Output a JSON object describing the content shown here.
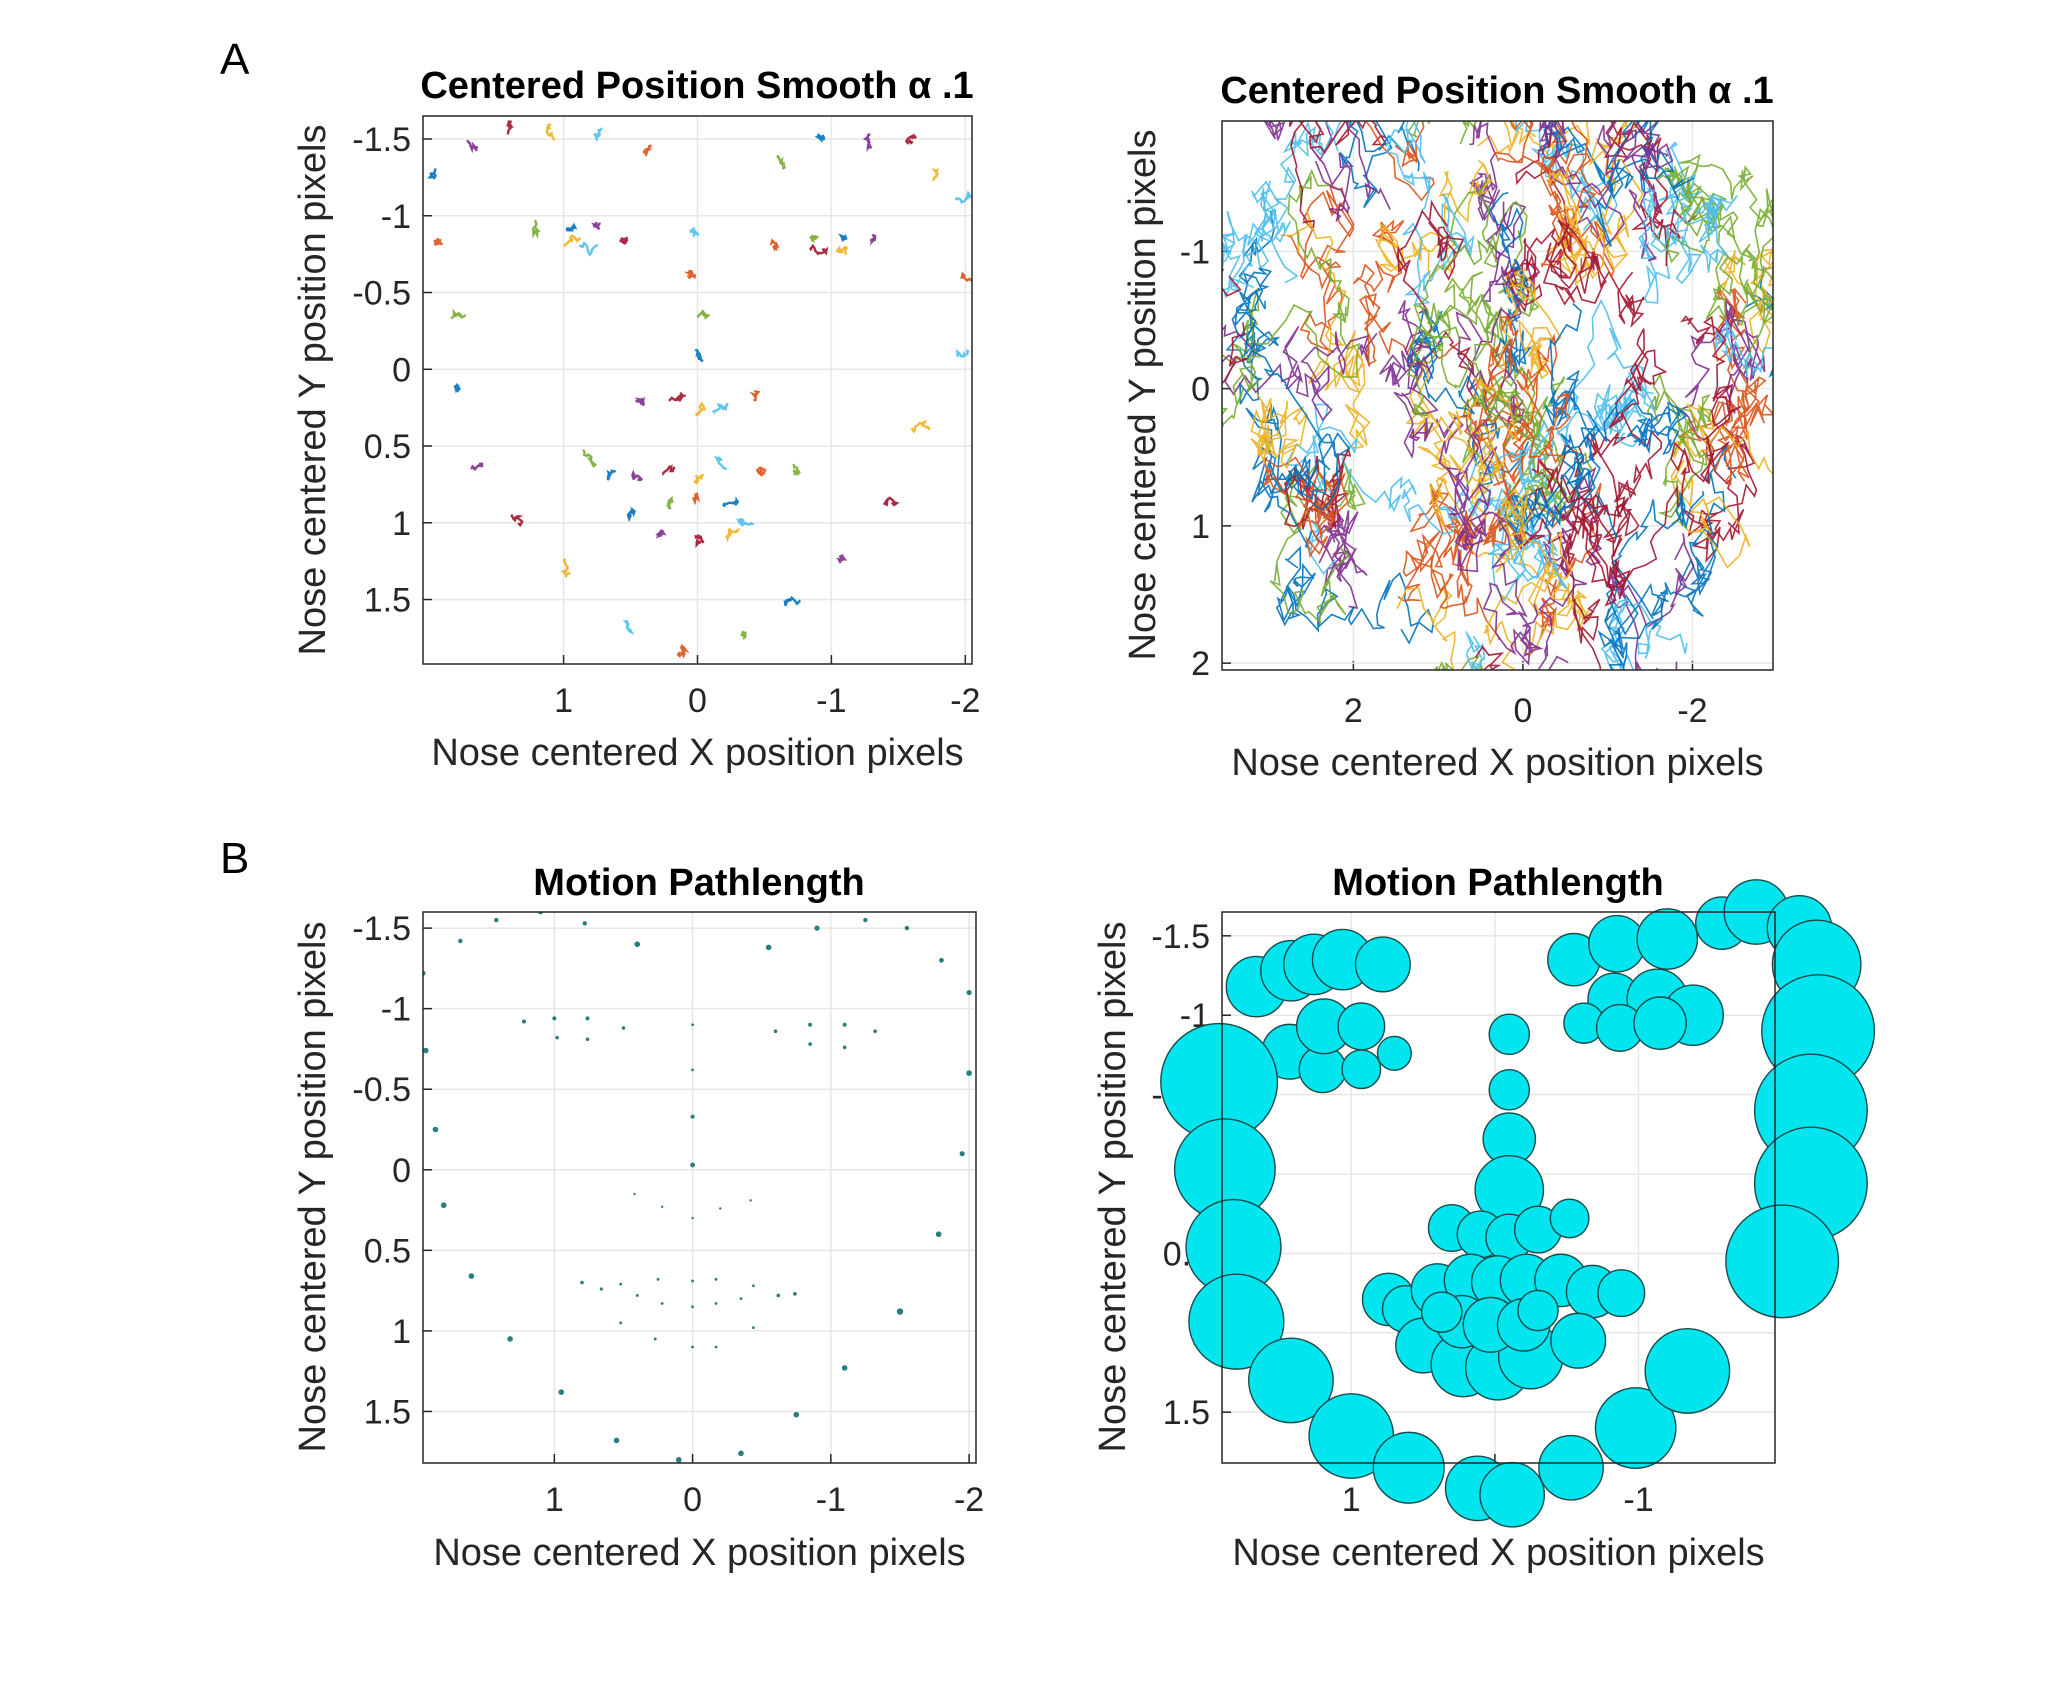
{
  "panel_labels": [
    "A",
    "B"
  ],
  "colors": {
    "series": [
      "#0072BD",
      "#D95319",
      "#EDB120",
      "#7E2F8E",
      "#77AC30",
      "#4DBEEE",
      "#A2142F"
    ],
    "bubble_fill": "#00E5EE",
    "bubble_stroke": "#1a4a4a",
    "small_dot": "#2a7d7d",
    "grid": "#e6e6e6",
    "axis": "#262626"
  },
  "chart_data": [
    {
      "id": "A-left",
      "type": "line",
      "title": "Centered Position Smooth α .1",
      "xlabel": "Nose centered X position pixels",
      "ylabel": "Nose centered Y position pixels",
      "xlim": [
        2.05,
        -2.05
      ],
      "ylim": [
        -1.65,
        1.92
      ],
      "xticks": [
        1,
        0,
        -1,
        -2
      ],
      "xtick_labels": [
        "1",
        "0",
        "-1",
        "-2"
      ],
      "yticks": [
        -1.5,
        -1,
        -0.5,
        0,
        0.5,
        1,
        1.5
      ],
      "ytick_labels": [
        "-1.5",
        "-1",
        "-0.5",
        "0",
        "0.5",
        "1",
        "1.5"
      ],
      "trace_scale": 0.045,
      "landmarks": [
        [
          1.95,
          -1.3
        ],
        [
          1.65,
          -1.42
        ],
        [
          1.42,
          -1.55
        ],
        [
          1.1,
          -1.6
        ],
        [
          0.75,
          -1.55
        ],
        [
          0.4,
          -1.42
        ],
        [
          -0.6,
          -1.38
        ],
        [
          -0.95,
          -1.5
        ],
        [
          -1.3,
          -1.55
        ],
        [
          -1.6,
          -1.5
        ],
        [
          -1.8,
          -1.28
        ],
        [
          -2.0,
          -1.1
        ],
        [
          1.92,
          -0.8
        ],
        [
          1.85,
          -0.32
        ],
        [
          1.8,
          0.15
        ],
        [
          1.62,
          0.6
        ],
        [
          1.35,
          1.02
        ],
        [
          0.95,
          1.35
        ],
        [
          0.55,
          1.65
        ],
        [
          0.1,
          1.78
        ],
        [
          -0.35,
          1.75
        ],
        [
          -0.75,
          1.5
        ],
        [
          -1.1,
          1.22
        ],
        [
          -1.48,
          0.85
        ],
        [
          -1.75,
          0.4
        ],
        [
          -1.92,
          -0.08
        ],
        [
          -1.98,
          -0.6
        ],
        [
          1.22,
          -0.9
        ],
        [
          1.0,
          -0.9
        ],
        [
          0.75,
          -0.92
        ],
        [
          0.5,
          -0.85
        ],
        [
          0.98,
          -0.82
        ],
        [
          0.75,
          -0.8
        ],
        [
          -0.58,
          -0.84
        ],
        [
          -0.85,
          -0.88
        ],
        [
          -1.1,
          -0.86
        ],
        [
          -1.32,
          -0.84
        ],
        [
          -0.85,
          -0.78
        ],
        [
          -1.1,
          -0.76
        ],
        [
          0.0,
          -0.88
        ],
        [
          0.0,
          -0.6
        ],
        [
          0.0,
          -0.32
        ],
        [
          0.0,
          -0.05
        ],
        [
          0.4,
          0.18
        ],
        [
          0.2,
          0.22
        ],
        [
          0.0,
          0.3
        ],
        [
          -0.2,
          0.23
        ],
        [
          -0.4,
          0.2
        ],
        [
          0.8,
          0.62
        ],
        [
          0.6,
          0.68
        ],
        [
          0.4,
          0.72
        ],
        [
          0.2,
          0.65
        ],
        [
          0.0,
          0.7
        ],
        [
          -0.2,
          0.65
        ],
        [
          -0.45,
          0.7
        ],
        [
          -0.72,
          0.67
        ],
        [
          0.5,
          0.95
        ],
        [
          0.25,
          1.05
        ],
        [
          0.0,
          1.12
        ],
        [
          -0.2,
          1.1
        ],
        [
          -0.4,
          0.98
        ],
        [
          0.0,
          0.85
        ],
        [
          0.2,
          0.88
        ],
        [
          -0.2,
          0.88
        ]
      ]
    },
    {
      "id": "A-right",
      "type": "line",
      "title": "Centered Position Smooth α .1",
      "xlabel": "Nose centered X position pixels",
      "ylabel": "Nose centered Y position pixels",
      "xlim": [
        3.55,
        -2.95
      ],
      "ylim": [
        -1.95,
        2.05
      ],
      "xticks": [
        2,
        0,
        -2
      ],
      "xtick_labels": [
        "2",
        "0",
        "-2"
      ],
      "yticks": [
        -1,
        0,
        1,
        2
      ],
      "ytick_labels": [
        "-1",
        "0",
        "1",
        "2"
      ],
      "trace_scale": 0.32,
      "landmarks": [
        [
          2.9,
          -1.2
        ],
        [
          2.3,
          -1.6
        ],
        [
          1.5,
          -1.85
        ],
        [
          0.6,
          -1.9
        ],
        [
          -0.4,
          -1.85
        ],
        [
          -1.2,
          -1.6
        ],
        [
          -1.9,
          -1.25
        ],
        [
          -2.5,
          -0.75
        ],
        [
          -2.7,
          -0.1
        ],
        [
          -2.4,
          0.5
        ],
        [
          -1.9,
          1.1
        ],
        [
          -1.2,
          1.6
        ],
        [
          -0.4,
          1.85
        ],
        [
          0.5,
          1.9
        ],
        [
          1.4,
          1.65
        ],
        [
          2.2,
          1.2
        ],
        [
          2.8,
          0.55
        ],
        [
          3.1,
          -0.1
        ],
        [
          3.2,
          -0.6
        ],
        [
          1.6,
          -1.15
        ],
        [
          0.8,
          -1.25
        ],
        [
          -0.8,
          -1.2
        ],
        [
          -1.5,
          -1.05
        ],
        [
          0.0,
          -0.6
        ],
        [
          0.0,
          0.2
        ],
        [
          0.0,
          0.6
        ],
        [
          0.3,
          0.8
        ],
        [
          -0.3,
          0.8
        ],
        [
          0.0,
          1.05
        ],
        [
          0.5,
          0.5
        ],
        [
          -0.5,
          0.6
        ],
        [
          1.2,
          0.2
        ],
        [
          -1.2,
          0.3
        ]
      ]
    },
    {
      "id": "B-left",
      "type": "scatter",
      "title": "Motion Pathlength",
      "xlabel": "Nose centered X position pixels",
      "ylabel": "Nose centered Y position pixels",
      "xlim": [
        1.95,
        -2.05
      ],
      "ylim": [
        -1.6,
        1.82
      ],
      "xticks": [
        1,
        0,
        -1,
        -2
      ],
      "xtick_labels": [
        "1",
        "0",
        "-1",
        "-2"
      ],
      "yticks": [
        -1.5,
        -1,
        -0.5,
        0,
        0.5,
        1,
        1.5
      ],
      "ytick_labels": [
        "-1.5",
        "-1",
        -0.5,
        "0",
        "0.5",
        "1",
        "1.5"
      ],
      "points": [
        [
          1.95,
          -1.22,
          2.6
        ],
        [
          1.68,
          -1.42,
          2.2
        ],
        [
          1.42,
          -1.55,
          2.2
        ],
        [
          1.1,
          -1.6,
          2.4
        ],
        [
          0.78,
          -1.53,
          2.2
        ],
        [
          0.4,
          -1.4,
          2.8
        ],
        [
          -0.55,
          -1.38,
          2.8
        ],
        [
          -0.9,
          -1.5,
          2.6
        ],
        [
          -1.25,
          -1.55,
          2.2
        ],
        [
          -1.55,
          -1.5,
          2.2
        ],
        [
          -1.8,
          -1.3,
          2.4
        ],
        [
          -2.0,
          -1.1,
          2.6
        ],
        [
          1.93,
          -0.74,
          2.8
        ],
        [
          1.86,
          -0.25,
          2.8
        ],
        [
          1.8,
          0.22,
          2.8
        ],
        [
          1.6,
          0.66,
          2.8
        ],
        [
          1.32,
          1.05,
          2.8
        ],
        [
          0.95,
          1.38,
          2.8
        ],
        [
          0.55,
          1.68,
          2.8
        ],
        [
          0.1,
          1.8,
          2.8
        ],
        [
          -0.35,
          1.76,
          2.8
        ],
        [
          -0.75,
          1.52,
          2.8
        ],
        [
          -1.1,
          1.23,
          2.8
        ],
        [
          -1.5,
          0.88,
          3.2
        ],
        [
          -1.78,
          0.4,
          2.8
        ],
        [
          -1.95,
          -0.1,
          2.6
        ],
        [
          -2.0,
          -0.6,
          2.8
        ],
        [
          1.22,
          -0.92,
          2.0
        ],
        [
          1.0,
          -0.94,
          2.0
        ],
        [
          0.76,
          -0.94,
          2.0
        ],
        [
          0.5,
          -0.88,
          1.8
        ],
        [
          0.98,
          -0.82,
          1.8
        ],
        [
          0.76,
          -0.81,
          1.8
        ],
        [
          -0.6,
          -0.86,
          1.8
        ],
        [
          -0.85,
          -0.9,
          2.0
        ],
        [
          -1.1,
          -0.9,
          2.0
        ],
        [
          -1.32,
          -0.86,
          1.8
        ],
        [
          -0.85,
          -0.78,
          1.8
        ],
        [
          -1.1,
          -0.76,
          1.8
        ],
        [
          0.0,
          -0.9,
          1.4
        ],
        [
          0.0,
          -0.62,
          1.4
        ],
        [
          0.0,
          -0.33,
          2.0
        ],
        [
          0.0,
          -0.03,
          2.4
        ],
        [
          0.42,
          0.15,
          1.2
        ],
        [
          0.22,
          0.23,
          1.2
        ],
        [
          0.0,
          0.3,
          1.2
        ],
        [
          -0.2,
          0.24,
          1.2
        ],
        [
          -0.42,
          0.19,
          1.2
        ],
        [
          0.8,
          0.7,
          1.8
        ],
        [
          0.66,
          0.74,
          1.6
        ],
        [
          0.52,
          0.71,
          1.4
        ],
        [
          0.25,
          0.68,
          1.4
        ],
        [
          0.0,
          0.69,
          1.4
        ],
        [
          -0.17,
          0.68,
          1.4
        ],
        [
          -0.44,
          0.72,
          1.4
        ],
        [
          -0.62,
          0.78,
          1.8
        ],
        [
          -0.74,
          0.77,
          1.8
        ],
        [
          0.52,
          0.95,
          1.4
        ],
        [
          0.27,
          1.05,
          1.4
        ],
        [
          0.0,
          1.1,
          1.4
        ],
        [
          -0.17,
          1.1,
          1.4
        ],
        [
          -0.44,
          0.98,
          1.4
        ],
        [
          0.0,
          0.85,
          1.4
        ],
        [
          0.22,
          0.83,
          1.4
        ],
        [
          -0.17,
          0.83,
          1.4
        ],
        [
          0.4,
          0.78,
          1.4
        ],
        [
          -0.35,
          0.8,
          1.4
        ]
      ]
    },
    {
      "id": "B-right",
      "type": "scatter",
      "title": "Motion Pathlength",
      "xlabel": "Nose centered X position pixels",
      "ylabel": "Nose centered Y position pixels",
      "xlim": [
        1.9,
        -1.95
      ],
      "ylim": [
        -1.65,
        1.82
      ],
      "xticks": [
        1,
        0,
        -1
      ],
      "xtick_labels": [
        "1",
        "0",
        "-1"
      ],
      "yticks": [
        -1.5,
        -1,
        -0.5,
        0,
        0.5,
        1,
        1.5
      ],
      "ytick_labels": [
        "-1.5",
        "-1",
        "-0.5",
        "0",
        "0.5",
        "1",
        "1.5"
      ],
      "points": [
        [
          1.66,
          -1.18,
          0.075
        ],
        [
          1.42,
          -1.28,
          0.075
        ],
        [
          1.26,
          -1.32,
          0.075
        ],
        [
          1.06,
          -1.35,
          0.075
        ],
        [
          0.78,
          -1.32,
          0.068
        ],
        [
          1.43,
          -0.77,
          0.068
        ],
        [
          1.2,
          -0.66,
          0.058
        ],
        [
          1.19,
          -0.93,
          0.068
        ],
        [
          0.93,
          -0.93,
          0.058
        ],
        [
          0.93,
          -0.66,
          0.048
        ],
        [
          0.7,
          -0.76,
          0.042
        ],
        [
          1.92,
          -0.58,
          0.145
        ],
        [
          1.88,
          -0.03,
          0.125
        ],
        [
          1.82,
          0.46,
          0.118
        ],
        [
          1.8,
          0.93,
          0.118
        ],
        [
          1.42,
          1.3,
          0.105
        ],
        [
          1.0,
          1.65,
          0.105
        ],
        [
          0.6,
          1.85,
          0.088
        ],
        [
          0.12,
          1.98,
          0.08
        ],
        [
          -0.12,
          2.02,
          0.08
        ],
        [
          -0.53,
          1.85,
          0.08
        ],
        [
          -0.98,
          1.6,
          0.1
        ],
        [
          -1.34,
          1.24,
          0.105
        ],
        [
          -1.58,
          -1.58,
          0.065
        ],
        [
          -1.82,
          -1.65,
          0.08
        ],
        [
          -2.12,
          -1.55,
          0.08
        ],
        [
          -2.24,
          -1.32,
          0.11
        ],
        [
          -2.25,
          -0.9,
          0.14
        ],
        [
          -2.2,
          -0.4,
          0.14
        ],
        [
          -2.2,
          0.06,
          0.14
        ],
        [
          -2.0,
          0.55,
          0.14
        ],
        [
          -0.55,
          -1.35,
          0.065
        ],
        [
          -0.85,
          -1.45,
          0.07
        ],
        [
          -1.2,
          -1.48,
          0.075
        ],
        [
          -0.83,
          -1.1,
          0.065
        ],
        [
          -1.13,
          -1.1,
          0.075
        ],
        [
          -1.38,
          -1.0,
          0.075
        ],
        [
          -0.62,
          -0.95,
          0.05
        ],
        [
          -0.87,
          -0.92,
          0.058
        ],
        [
          -1.15,
          -0.95,
          0.065
        ],
        [
          -0.1,
          -0.88,
          0.05
        ],
        [
          -0.1,
          -0.53,
          0.05
        ],
        [
          -0.1,
          -0.22,
          0.065
        ],
        [
          -0.1,
          0.1,
          0.085
        ],
        [
          0.3,
          0.34,
          0.058
        ],
        [
          0.1,
          0.38,
          0.058
        ],
        [
          -0.1,
          0.4,
          0.058
        ],
        [
          -0.3,
          0.35,
          0.058
        ],
        [
          -0.52,
          0.28,
          0.048
        ],
        [
          0.74,
          0.79,
          0.065
        ],
        [
          0.62,
          0.85,
          0.058
        ],
        [
          0.4,
          0.73,
          0.065
        ],
        [
          0.17,
          0.67,
          0.065
        ],
        [
          -0.02,
          0.68,
          0.065
        ],
        [
          -0.22,
          0.67,
          0.065
        ],
        [
          -0.46,
          0.67,
          0.065
        ],
        [
          -0.68,
          0.74,
          0.065
        ],
        [
          -0.88,
          0.75,
          0.058
        ],
        [
          0.5,
          1.08,
          0.068
        ],
        [
          0.22,
          1.2,
          0.08
        ],
        [
          -0.02,
          1.22,
          0.08
        ],
        [
          -0.25,
          1.15,
          0.08
        ],
        [
          -0.58,
          1.05,
          0.068
        ],
        [
          0.23,
          0.93,
          0.065
        ],
        [
          0.03,
          0.95,
          0.068
        ],
        [
          -0.2,
          0.95,
          0.065
        ],
        [
          0.37,
          0.87,
          0.05
        ],
        [
          -0.3,
          0.86,
          0.05
        ]
      ]
    }
  ]
}
